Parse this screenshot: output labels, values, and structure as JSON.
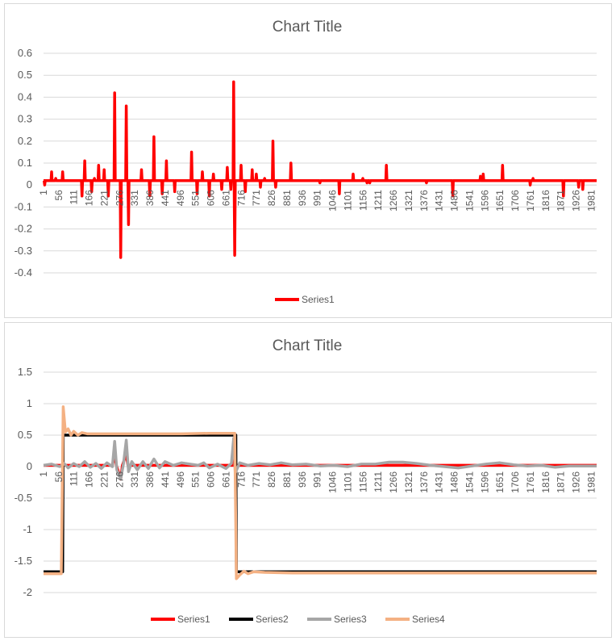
{
  "charts": [
    {
      "title": "Chart Title",
      "legend": [
        "Series1"
      ]
    },
    {
      "title": "Chart Title",
      "legend": [
        "Series1",
        "Series2",
        "Series3",
        "Series4"
      ]
    }
  ],
  "chart_data": [
    {
      "type": "line",
      "title": "Chart Title",
      "xlabel": "",
      "ylabel": "",
      "ylim": [
        -0.4,
        0.6
      ],
      "yticks": [
        "0.6",
        "0.5",
        "0.4",
        "0.3",
        "0.2",
        "0.1",
        "0",
        "-0.1",
        "-0.2",
        "-0.3",
        "-0.4"
      ],
      "x_range": [
        1,
        2000
      ],
      "xticks": [
        "1",
        "56",
        "111",
        "166",
        "221",
        "276",
        "331",
        "386",
        "441",
        "496",
        "551",
        "606",
        "661",
        "716",
        "771",
        "826",
        "881",
        "936",
        "991",
        "1046",
        "1101",
        "1156",
        "1211",
        "1266",
        "1321",
        "1376",
        "1431",
        "1486",
        "1541",
        "1596",
        "1651",
        "1706",
        "1761",
        "1816",
        "1871",
        "1926",
        "1981"
      ],
      "legend_position": "bottom",
      "grid": true,
      "series": [
        {
          "name": "Series1",
          "color": "#ff0000",
          "baseline": 0.02,
          "spikes": [
            [
              5,
              0.0
            ],
            [
              30,
              0.06
            ],
            [
              45,
              0.03
            ],
            [
              70,
              0.06
            ],
            [
              140,
              -0.05
            ],
            [
              150,
              0.11
            ],
            [
              175,
              -0.03
            ],
            [
              185,
              0.03
            ],
            [
              200,
              0.09
            ],
            [
              220,
              0.07
            ],
            [
              235,
              -0.05
            ],
            [
              258,
              0.42
            ],
            [
              280,
              -0.33
            ],
            [
              300,
              0.36
            ],
            [
              308,
              -0.18
            ],
            [
              355,
              0.07
            ],
            [
              385,
              -0.05
            ],
            [
              400,
              0.22
            ],
            [
              430,
              -0.04
            ],
            [
              445,
              0.11
            ],
            [
              475,
              -0.03
            ],
            [
              536,
              0.15
            ],
            [
              556,
              -0.04
            ],
            [
              575,
              0.06
            ],
            [
              600,
              -0.05
            ],
            [
              615,
              0.05
            ],
            [
              645,
              -0.02
            ],
            [
              665,
              0.08
            ],
            [
              678,
              -0.02
            ],
            [
              688,
              0.47
            ],
            [
              692,
              -0.32
            ],
            [
              715,
              0.09
            ],
            [
              730,
              -0.03
            ],
            [
              755,
              0.07
            ],
            [
              770,
              0.05
            ],
            [
              785,
              -0.01
            ],
            [
              800,
              0.03
            ],
            [
              830,
              0.2
            ],
            [
              840,
              -0.01
            ],
            [
              895,
              0.1
            ],
            [
              980,
              0.02
            ],
            [
              990,
              0.02
            ],
            [
              1000,
              0.01
            ],
            [
              1070,
              -0.04
            ],
            [
              1120,
              0.05
            ],
            [
              1155,
              0.03
            ],
            [
              1170,
              0.01
            ],
            [
              1180,
              0.01
            ],
            [
              1190,
              0.02
            ],
            [
              1240,
              0.09
            ],
            [
              1385,
              0.01
            ],
            [
              1480,
              -0.05
            ],
            [
              1580,
              0.04
            ],
            [
              1590,
              0.05
            ],
            [
              1660,
              0.09
            ],
            [
              1760,
              0.0
            ],
            [
              1770,
              0.03
            ],
            [
              1880,
              -0.05
            ],
            [
              1920,
              0.02
            ],
            [
              1935,
              -0.01
            ],
            [
              1950,
              -0.02
            ],
            [
              1990,
              0.02
            ]
          ]
        }
      ]
    },
    {
      "type": "line",
      "title": "Chart Title",
      "xlabel": "",
      "ylabel": "",
      "ylim": [
        -2,
        1.5
      ],
      "yticks": [
        "1.5",
        "1",
        "0.5",
        "0",
        "-0.5",
        "-1",
        "-1.5",
        "-2"
      ],
      "x_range": [
        1,
        2000
      ],
      "xticks": [
        "1",
        "56",
        "111",
        "166",
        "221",
        "276",
        "331",
        "386",
        "441",
        "496",
        "551",
        "606",
        "661",
        "716",
        "771",
        "826",
        "881",
        "936",
        "991",
        "1046",
        "1101",
        "1156",
        "1211",
        "1266",
        "1321",
        "1376",
        "1431",
        "1486",
        "1541",
        "1596",
        "1651",
        "1706",
        "1761",
        "1816",
        "1871",
        "1926",
        "1981"
      ],
      "legend_position": "bottom",
      "grid": true,
      "series": [
        {
          "name": "Series1",
          "color": "#ff0000",
          "points": [
            [
              1,
              0.02
            ],
            [
              250,
              0.02
            ],
            [
              258,
              0.2
            ],
            [
              264,
              0.02
            ],
            [
              280,
              -0.2
            ],
            [
              286,
              0.02
            ],
            [
              300,
              0.2
            ],
            [
              306,
              0.02
            ],
            [
              688,
              0.02
            ],
            [
              690,
              0.2
            ],
            [
              693,
              0.02
            ],
            [
              2000,
              0.02
            ]
          ]
        },
        {
          "name": "Series2",
          "color": "#000000",
          "points": [
            [
              1,
              -1.67
            ],
            [
              70,
              -1.67
            ],
            [
              72,
              0.5
            ],
            [
              696,
              0.5
            ],
            [
              698,
              -1.67
            ],
            [
              2000,
              -1.67
            ]
          ]
        },
        {
          "name": "Series3",
          "color": "#a6a6a6",
          "points": [
            [
              1,
              0.02
            ],
            [
              30,
              0.04
            ],
            [
              60,
              0.0
            ],
            [
              75,
              0.05
            ],
            [
              90,
              -0.02
            ],
            [
              110,
              0.05
            ],
            [
              130,
              0.0
            ],
            [
              150,
              0.08
            ],
            [
              170,
              -0.01
            ],
            [
              190,
              0.05
            ],
            [
              210,
              -0.03
            ],
            [
              230,
              0.06
            ],
            [
              250,
              0.0
            ],
            [
              258,
              0.4
            ],
            [
              266,
              -0.05
            ],
            [
              280,
              -0.2
            ],
            [
              290,
              0.05
            ],
            [
              300,
              0.42
            ],
            [
              308,
              -0.08
            ],
            [
              320,
              0.08
            ],
            [
              340,
              -0.05
            ],
            [
              360,
              0.08
            ],
            [
              380,
              -0.03
            ],
            [
              400,
              0.12
            ],
            [
              420,
              -0.02
            ],
            [
              440,
              0.08
            ],
            [
              470,
              0.02
            ],
            [
              500,
              0.06
            ],
            [
              530,
              0.04
            ],
            [
              560,
              0.02
            ],
            [
              580,
              0.06
            ],
            [
              600,
              -0.02
            ],
            [
              630,
              0.04
            ],
            [
              660,
              -0.03
            ],
            [
              680,
              0.05
            ],
            [
              688,
              0.45
            ],
            [
              694,
              -0.1
            ],
            [
              710,
              0.06
            ],
            [
              740,
              0.02
            ],
            [
              780,
              0.05
            ],
            [
              820,
              0.03
            ],
            [
              860,
              0.06
            ],
            [
              900,
              0.03
            ],
            [
              950,
              0.04
            ],
            [
              1000,
              0.01
            ],
            [
              1050,
              0.02
            ],
            [
              1100,
              0.0
            ],
            [
              1150,
              0.04
            ],
            [
              1200,
              0.04
            ],
            [
              1250,
              0.07
            ],
            [
              1300,
              0.07
            ],
            [
              1350,
              0.05
            ],
            [
              1400,
              0.02
            ],
            [
              1450,
              0.0
            ],
            [
              1500,
              -0.02
            ],
            [
              1550,
              0.01
            ],
            [
              1600,
              0.04
            ],
            [
              1650,
              0.06
            ],
            [
              1700,
              0.03
            ],
            [
              1750,
              0.01
            ],
            [
              1800,
              0.02
            ],
            [
              1850,
              -0.01
            ],
            [
              1900,
              0.01
            ],
            [
              1950,
              0.01
            ],
            [
              2000,
              0.01
            ]
          ]
        },
        {
          "name": "Series4",
          "color": "#f4b183",
          "points": [
            [
              1,
              -1.7
            ],
            [
              65,
              -1.7
            ],
            [
              72,
              0.95
            ],
            [
              80,
              0.55
            ],
            [
              90,
              0.6
            ],
            [
              100,
              0.5
            ],
            [
              110,
              0.56
            ],
            [
              125,
              0.5
            ],
            [
              140,
              0.54
            ],
            [
              160,
              0.52
            ],
            [
              200,
              0.52
            ],
            [
              300,
              0.52
            ],
            [
              400,
              0.52
            ],
            [
              500,
              0.52
            ],
            [
              600,
              0.53
            ],
            [
              692,
              0.53
            ],
            [
              698,
              -1.78
            ],
            [
              710,
              -1.72
            ],
            [
              725,
              -1.66
            ],
            [
              740,
              -1.7
            ],
            [
              760,
              -1.67
            ],
            [
              800,
              -1.68
            ],
            [
              900,
              -1.69
            ],
            [
              1000,
              -1.69
            ],
            [
              1500,
              -1.69
            ],
            [
              2000,
              -1.69
            ]
          ]
        }
      ]
    }
  ]
}
